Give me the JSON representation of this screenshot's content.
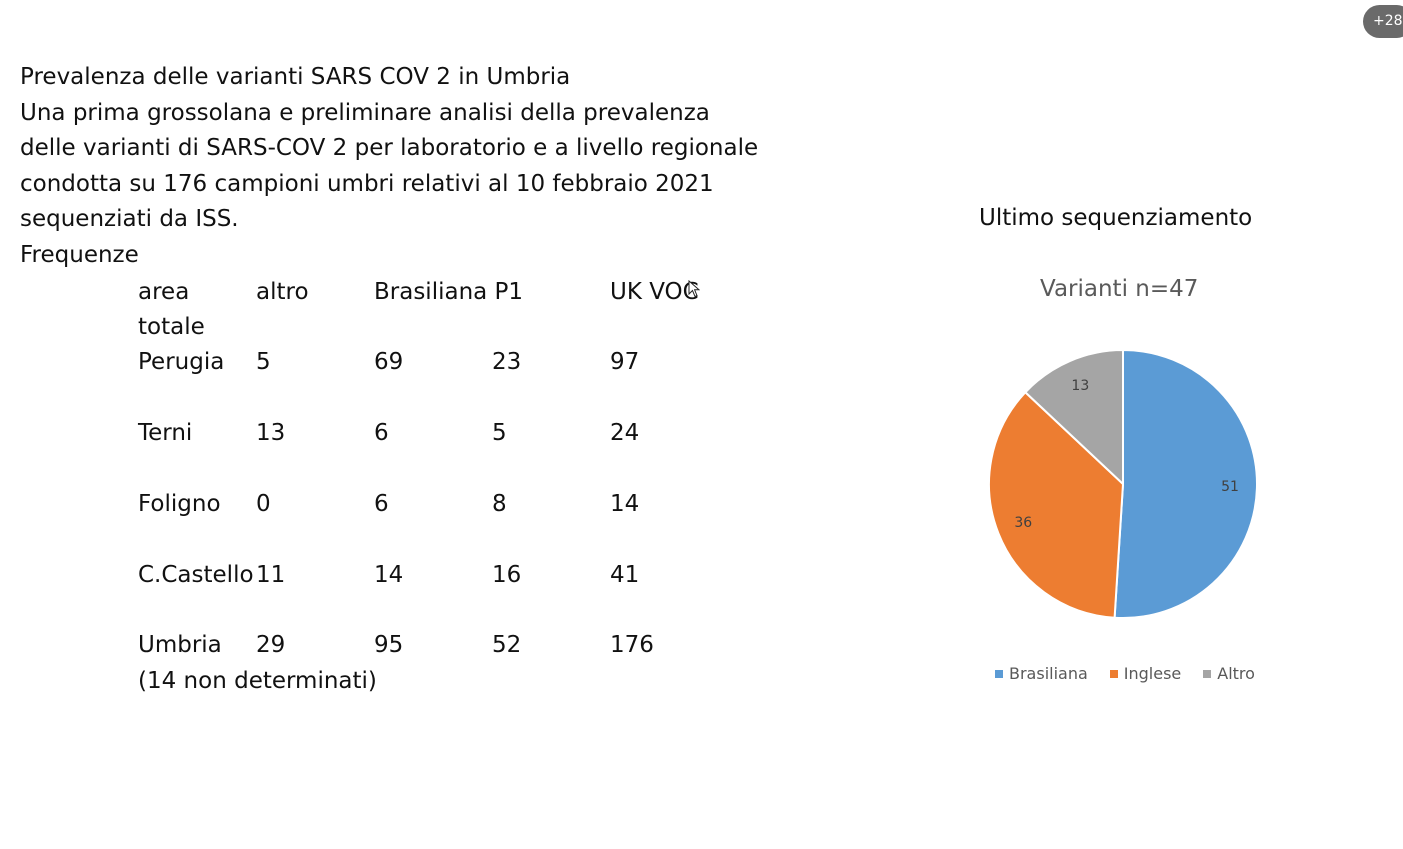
{
  "overlay": {
    "badge": "+28"
  },
  "intro": {
    "lines": [
      "Prevalenza delle varianti SARS COV 2 in Umbria",
      "Una prima grossolana e preliminare analisi della prevalenza",
      "delle varianti di SARS-COV 2 per laboratorio e a livello regionale",
      "condotta su 176 campioni umbri relativi al 10 febbraio 2021",
      "sequenziati da ISS.",
      "Frequenze"
    ]
  },
  "table": {
    "headers": [
      "area",
      "altro",
      "Brasiliana P1",
      "UK VOC"
    ],
    "header_line2": "totale",
    "rows": [
      {
        "area": "Perugia",
        "values": [
          "5",
          "69",
          "23",
          "97"
        ]
      },
      {
        "area": "Terni",
        "values": [
          "13",
          "6",
          "5",
          "24"
        ]
      },
      {
        "area": "Foligno",
        "values": [
          "0",
          "6",
          "8",
          "14"
        ]
      },
      {
        "area": "C.Castello",
        "values": [
          "11",
          "14",
          "16",
          "41"
        ]
      },
      {
        "area": "Umbria",
        "values": [
          "29",
          "95",
          "52",
          "176"
        ]
      }
    ],
    "footnote": "(14 non determinati)"
  },
  "chart_data": {
    "type": "pie",
    "heading": "Ultimo sequenziamento",
    "title": "Varianti n=47",
    "categories": [
      "Brasiliana",
      "Inglese",
      "Altro"
    ],
    "values": [
      51,
      36,
      13
    ],
    "colors": [
      "#5b9bd5",
      "#ed7d31",
      "#a5a5a5"
    ],
    "legend_position": "bottom"
  }
}
